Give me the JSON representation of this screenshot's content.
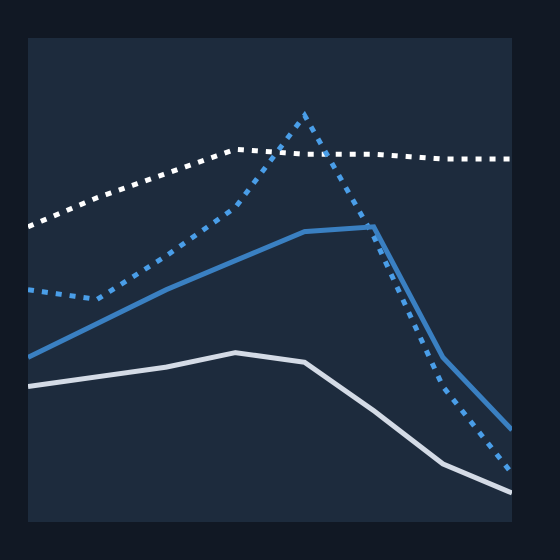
{
  "chart_data": {
    "type": "line",
    "title": "",
    "xlabel": "",
    "ylabel": "",
    "x": [
      0,
      1,
      2,
      3,
      4,
      5,
      6,
      7
    ],
    "xlim": [
      0,
      7
    ],
    "ylim": [
      0,
      100
    ],
    "grid": false,
    "legend": "none",
    "series": [
      {
        "color": "#ffffff",
        "style": "dotted",
        "values": [
          61,
          67,
          72,
          77,
          76,
          76,
          75,
          75
        ]
      },
      {
        "color": "#4a9ee8",
        "style": "dotted",
        "values": [
          48,
          46,
          55,
          65,
          84,
          59,
          28,
          10
        ]
      },
      {
        "color": "#3a80c2",
        "style": "solid",
        "values": [
          34,
          41,
          48,
          54,
          60,
          61,
          34,
          19
        ]
      },
      {
        "color": "#d4dbe6",
        "style": "solid",
        "values": [
          28,
          30,
          32,
          35,
          33,
          23,
          12,
          6
        ]
      }
    ]
  }
}
